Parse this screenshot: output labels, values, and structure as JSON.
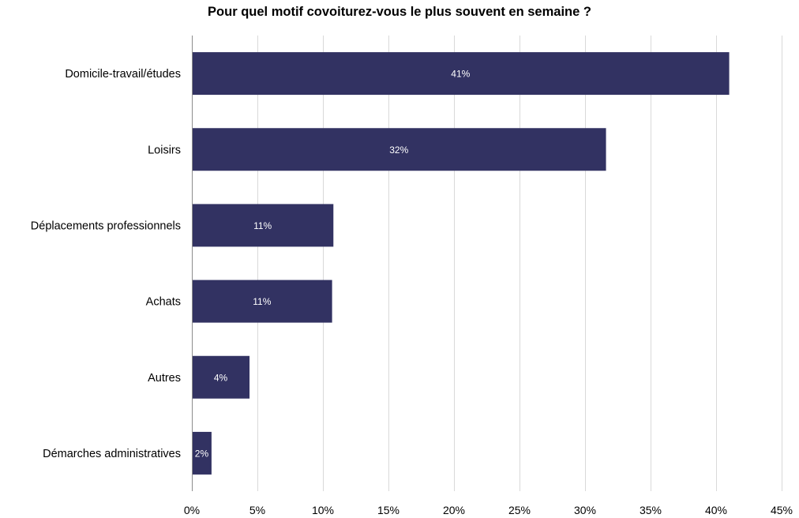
{
  "chart_data": {
    "type": "bar",
    "orientation": "horizontal",
    "title": "Pour quel motif covoiturez-vous le plus souvent en semaine ?",
    "categories": [
      "Domicile-travail/études",
      "Loisirs",
      "Déplacements professionnels",
      "Achats",
      "Autres",
      "Démarches administratives"
    ],
    "values": [
      41.0,
      31.6,
      10.8,
      10.7,
      4.4,
      1.5
    ],
    "data_labels": [
      "41%",
      "32%",
      "11%",
      "11%",
      "4%",
      "2%"
    ],
    "xlim": [
      0,
      45
    ],
    "x_ticks": [
      0,
      5,
      10,
      15,
      20,
      25,
      30,
      35,
      40,
      45
    ],
    "x_tick_labels": [
      "0%",
      "5%",
      "10%",
      "15%",
      "20%",
      "25%",
      "30%",
      "35%",
      "40%",
      "45%"
    ],
    "xlabel": "",
    "ylabel": "",
    "grid": "vertical",
    "legend": "none",
    "colors": {
      "bar": "#323262",
      "grid": "#d9d9d9",
      "axis": "#8c8c8c",
      "data_label": "#ffffff",
      "text": "#000000"
    }
  }
}
